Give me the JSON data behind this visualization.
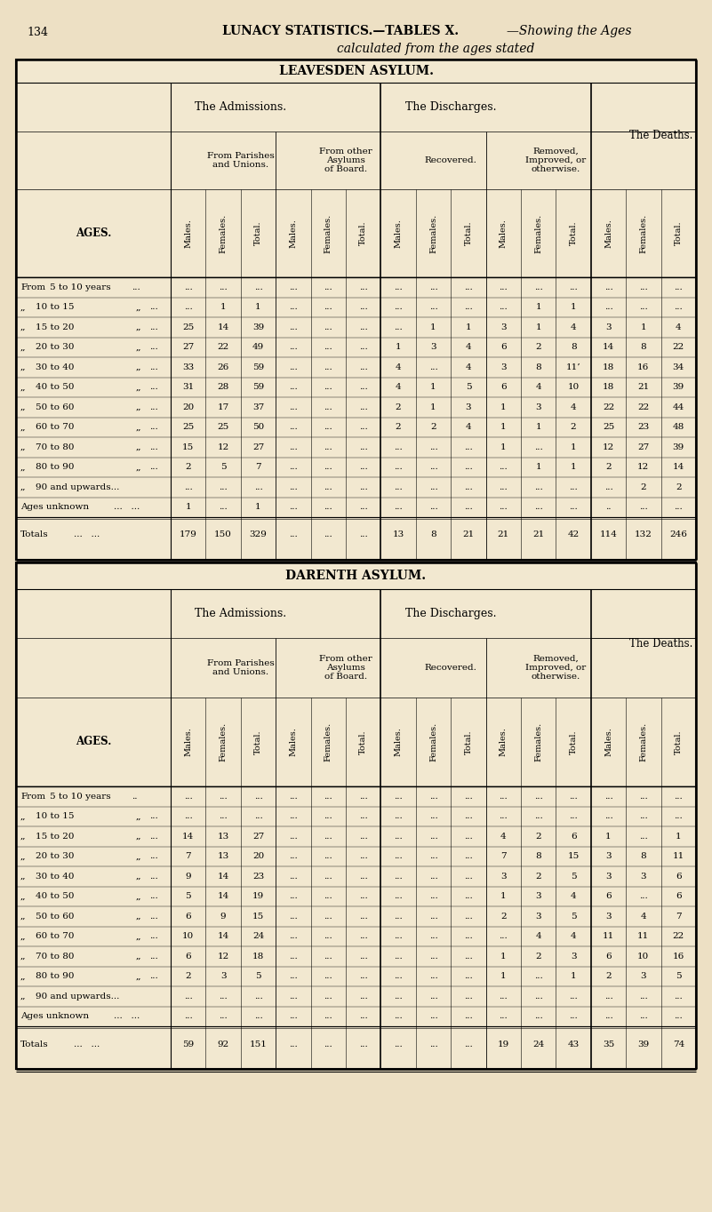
{
  "bg_color": "#ede0c4",
  "table_bg": "#f2e8d0",
  "page_num": "134",
  "header_line1": "LUNACY STATISTICS.—TABLES X.",
  "header_line1_italic": "—Showing the Ages",
  "header_line2": "calculated from the ages stated",
  "section1_title": "LEAVESDEN ASYLUM.",
  "section2_title": "DARENTH ASYLUM.",
  "admissions_label": "The Admissions.",
  "discharges_label": "The Discharges.",
  "deaths_label": "The Deaths.",
  "parishes_label": "From Parishes\nand Unions.",
  "other_asylums_label": "From other\nAsylums\nof Board.",
  "recovered_label": "Recovered.",
  "removed_label": "Removed,\nImproved, or\notherwise.",
  "ages_label": "AGES.",
  "col_labels": [
    "Males.",
    "Females.",
    "Total.",
    "Males.",
    "Females.",
    "Total.",
    "Males.",
    "Females.",
    "Total.",
    "Males.",
    "Females.",
    "Total.",
    "Males.",
    "Females.",
    "Total."
  ],
  "age_rows_col1": [
    "From",
    ",,",
    ",,",
    ",,",
    ",,",
    ",,",
    ",,",
    ",,",
    ",,",
    ",,",
    ",,",
    "Ages unknown"
  ],
  "age_rows_col2": [
    "5 to 10 years",
    "10 to 15",
    "15 to 20",
    "20 to 30",
    "30 to 40",
    "40 to 50",
    "50 to 60",
    "60 to 70",
    "70 to 80",
    "80 to 90",
    "90 and upwards...",
    "...   ..."
  ],
  "age_rows_col3": [
    "...",
    ",,",
    ",,",
    ",,",
    ",,",
    ",,",
    ",,",
    ",,",
    ",,",
    ",,",
    "",
    ""
  ],
  "age_rows_col4": [
    "...",
    "...",
    "...",
    "...",
    "...",
    "...",
    "...",
    "...",
    "...",
    "...",
    "",
    ""
  ],
  "leavesden_data": [
    [
      "...",
      "...",
      "...",
      "...",
      "...",
      "...",
      "...",
      "...",
      "...",
      "...",
      "...",
      "...",
      "...",
      "...",
      "..."
    ],
    [
      "...",
      "1",
      "1",
      "...",
      "...",
      "...",
      "...",
      "...",
      "...",
      "...",
      "1",
      "1",
      "...",
      "...",
      "..."
    ],
    [
      "25",
      "14",
      "39",
      "...",
      "...",
      "...",
      "...",
      "1",
      "1",
      "3",
      "1",
      "4",
      "3",
      "1",
      "4"
    ],
    [
      "27",
      "22",
      "49",
      "...",
      "...",
      "...",
      "1",
      "3",
      "4",
      "6",
      "2",
      "8",
      "14",
      "8",
      "22"
    ],
    [
      "33",
      "26",
      "59",
      "...",
      "...",
      "...",
      "4",
      "...",
      "4",
      "3",
      "8",
      "11’",
      "18",
      "16",
      "34"
    ],
    [
      "31",
      "28",
      "59",
      "...",
      "...",
      "...",
      "4",
      "1",
      "5",
      "6",
      "4",
      "10",
      "18",
      "21",
      "39"
    ],
    [
      "20",
      "17",
      "37",
      "...",
      "...",
      "...",
      "2",
      "1",
      "3",
      "1",
      "3",
      "4",
      "22",
      "22",
      "44"
    ],
    [
      "25",
      "25",
      "50",
      "...",
      "...",
      "...",
      "2",
      "2",
      "4",
      "1",
      "1",
      "2",
      "25",
      "23",
      "48"
    ],
    [
      "15",
      "12",
      "27",
      "...",
      "...",
      "...",
      "...",
      "...",
      "...",
      "1",
      "...",
      "1",
      "12",
      "27",
      "39"
    ],
    [
      "2",
      "5",
      "7",
      "...",
      "...",
      "...",
      "...",
      "...",
      "...",
      "...",
      "1",
      "1",
      "2",
      "12",
      "14"
    ],
    [
      "...",
      "...",
      "...",
      "...",
      "...",
      "...",
      "...",
      "...",
      "...",
      "...",
      "...",
      "...",
      "...",
      "2",
      "2"
    ],
    [
      "1",
      "...",
      "1",
      "...",
      "...",
      "...",
      "...",
      "...",
      "...",
      "...",
      "...",
      "...",
      "..",
      "...",
      "..."
    ]
  ],
  "leavesden_totals": [
    "179",
    "150",
    "329",
    "...",
    "...",
    "...",
    "13",
    "8",
    "21",
    "21",
    "21",
    "42",
    "114",
    "132",
    "246"
  ],
  "darenth_data": [
    [
      "...",
      "...",
      "...",
      "...",
      "...",
      "...",
      "...",
      "...",
      "...",
      "...",
      "...",
      "...",
      "...",
      "...",
      "..."
    ],
    [
      "...",
      "...",
      "...",
      "...",
      "...",
      "...",
      "...",
      "...",
      "...",
      "...",
      "...",
      "...",
      "...",
      "...",
      "..."
    ],
    [
      "14",
      "13",
      "27",
      "...",
      "...",
      "...",
      "...",
      "...",
      "...",
      "4",
      "2",
      "6",
      "1",
      "...",
      "1"
    ],
    [
      "7",
      "13",
      "20",
      "...",
      "...",
      "...",
      "...",
      "...",
      "...",
      "7",
      "8",
      "15",
      "3",
      "8",
      "11"
    ],
    [
      "9",
      "14",
      "23",
      "...",
      "...",
      "...",
      "...",
      "...",
      "...",
      "3",
      "2",
      "5",
      "3",
      "3",
      "6"
    ],
    [
      "5",
      "14",
      "19",
      "...",
      "...",
      "...",
      "...",
      "...",
      "...",
      "1",
      "3",
      "4",
      "6",
      "...",
      "6"
    ],
    [
      "6",
      "9",
      "15",
      "...",
      "...",
      "...",
      "...",
      "...",
      "...",
      "2",
      "3",
      "5",
      "3",
      "4",
      "7"
    ],
    [
      "10",
      "14",
      "24",
      "...",
      "...",
      "...",
      "...",
      "...",
      "...",
      "...",
      "4",
      "4",
      "11",
      "11",
      "22"
    ],
    [
      "6",
      "12",
      "18",
      "...",
      "...",
      "...",
      "...",
      "...",
      "...",
      "1",
      "2",
      "3",
      "6",
      "10",
      "16"
    ],
    [
      "2",
      "3",
      "5",
      "...",
      "...",
      "...",
      "...",
      "...",
      "...",
      "1",
      "...",
      "1",
      "2",
      "3",
      "5"
    ],
    [
      "...",
      "...",
      "...",
      "...",
      "...",
      "...",
      "...",
      "...",
      "...",
      "...",
      "...",
      "...",
      "...",
      "...",
      "..."
    ],
    [
      "...",
      "...",
      "...",
      "...",
      "...",
      "...",
      "...",
      "...",
      "...",
      "...",
      "...",
      "...",
      "...",
      "...",
      "..."
    ]
  ],
  "darenth_totals": [
    "59",
    "92",
    "151",
    "...",
    "...",
    "...",
    "...",
    "...",
    "...",
    "19",
    "24",
    "43",
    "35",
    "39",
    "74"
  ]
}
